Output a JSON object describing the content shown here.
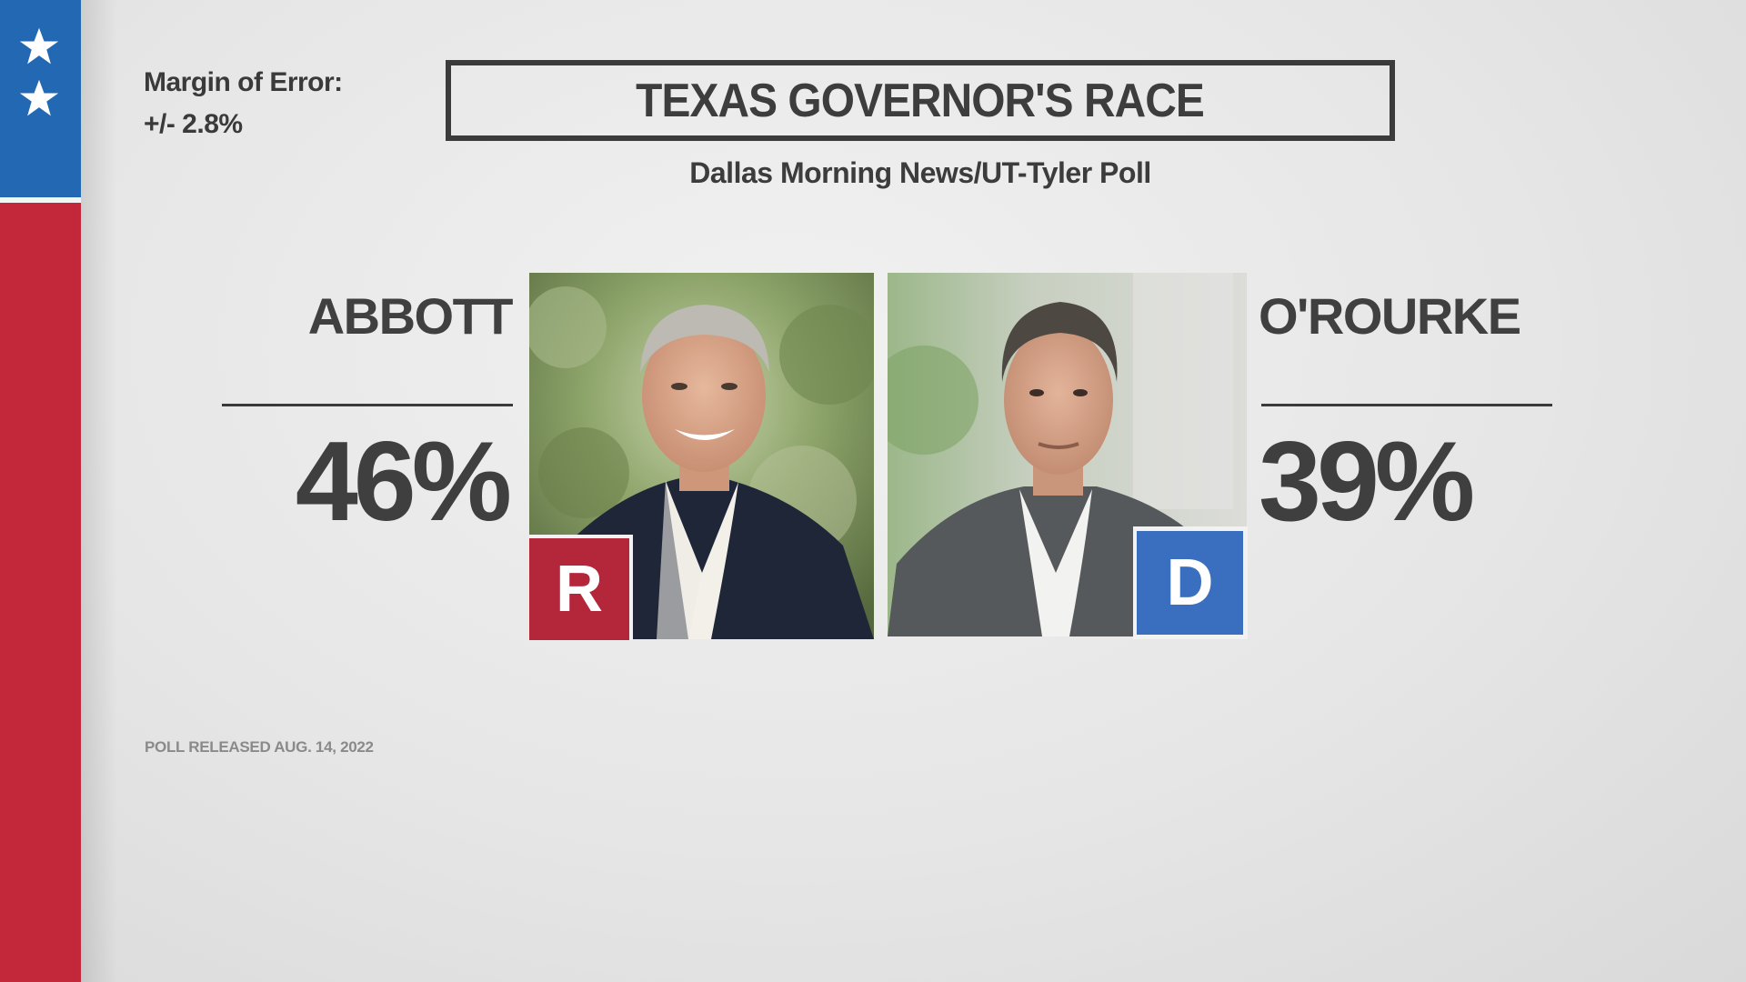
{
  "theme": {
    "flag_blue": "#2268b3",
    "flag_red": "#c22839",
    "republican_color": "#b4263a",
    "democrat_color": "#3a6fbf",
    "text_color": "#3d3d3d"
  },
  "flag": {
    "icons": [
      "star-icon",
      "star-icon"
    ]
  },
  "margin_of_error": {
    "label": "Margin of Error:",
    "value": "+/- 2.8%"
  },
  "title": "TEXAS GOVERNOR'S RACE",
  "subtitle": "Dallas Morning News/UT-Tyler Poll",
  "candidates": [
    {
      "name": "ABBOTT",
      "percent": "46%",
      "party_letter": "R"
    },
    {
      "name": "O'ROURKE",
      "percent": "39%",
      "party_letter": "D"
    }
  ],
  "footnote": "POLL RELEASED AUG. 14, 2022"
}
